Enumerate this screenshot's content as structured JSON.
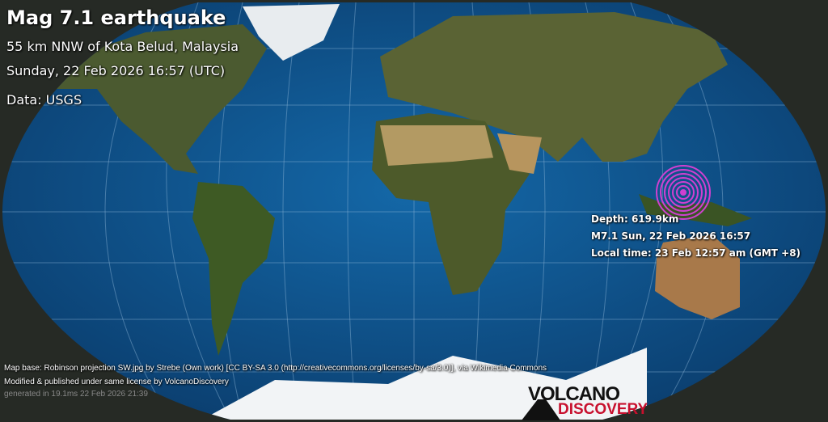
{
  "title": "Mag 7.1 earthquake",
  "location": "55 km NNW of Kota Belud, Malaysia",
  "datetime": "Sunday, 22 Feb 2026 16:57 (UTC)",
  "data_source": "Data: USGS",
  "epicenter_info": {
    "depth": "Depth: 619.9km",
    "event": "M7.1 Sun, 22 Feb 2026 16:57",
    "local_time": "Local time: 23 Feb 12:57 am (GMT +8)"
  },
  "footer": {
    "map_base": "Map base: Robinson projection SW.jpg by Strebe (Own work) [CC BY-SA 3.0 (http://creativecommons.org/licenses/by-sa/3.0)], via Wikimedia Commons",
    "modified": "Modified & published under same license by VolcanoDiscovery",
    "generated": "generated in 19.1ms 22 Feb 2026 21:39"
  },
  "logo": {
    "line1": "VOLCANO",
    "line2": "DISCOVERY"
  },
  "colors": {
    "ocean": "#0d4f86",
    "land": "#4a5a2c",
    "desert": "#b39a63",
    "ice": "#f2f4f6",
    "rings": "#d040d0",
    "background": "#262a25"
  }
}
